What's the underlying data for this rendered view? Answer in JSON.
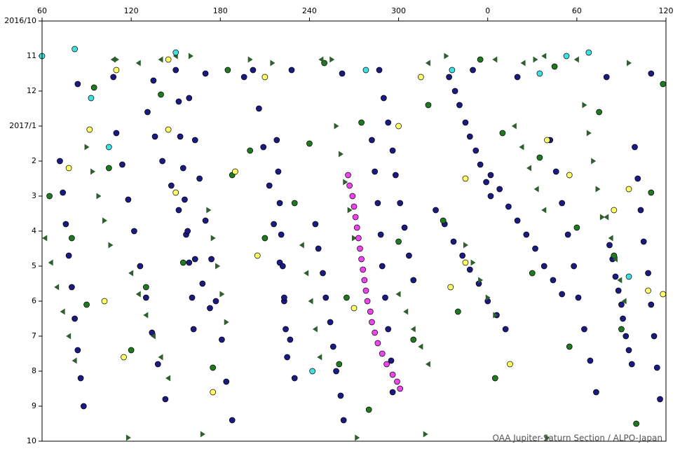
{
  "chart_data": {
    "type": "scatter",
    "annotation": "OAA Jupiter-Saturn Section / ALPO-Japan",
    "xaxis_position": "top",
    "xlim": [
      60,
      480
    ],
    "xticks": [
      60,
      120,
      180,
      240,
      300,
      {
        "value": 360,
        "label": "0"
      },
      {
        "value": 420,
        "label": "60"
      },
      {
        "value": 480,
        "label": "120"
      }
    ],
    "ylim": [
      12,
      0
    ],
    "yticks": [
      {
        "value": 0,
        "label": "2016/10"
      },
      {
        "value": 1,
        "label": "11"
      },
      {
        "value": 2,
        "label": "12"
      },
      {
        "value": 3,
        "label": "2017/1"
      },
      {
        "value": 4,
        "label": "2"
      },
      {
        "value": 5,
        "label": "3"
      },
      {
        "value": 6,
        "label": "4"
      },
      {
        "value": 7,
        "label": "5"
      },
      {
        "value": 8,
        "label": "6"
      },
      {
        "value": 9,
        "label": "7"
      },
      {
        "value": 10,
        "label": "8"
      },
      {
        "value": 11,
        "label": "9"
      },
      {
        "value": 12,
        "label": "10"
      }
    ],
    "series": [
      {
        "color": "#1a1a80",
        "marker": "circle",
        "x": [
          72,
          74,
          76,
          78,
          80,
          82,
          84,
          86,
          88,
          110,
          114,
          118,
          122,
          126,
          130,
          134,
          138,
          143,
          131,
          136,
          141,
          147,
          152,
          157,
          163,
          168,
          173,
          150,
          152,
          153,
          155,
          156,
          158,
          159,
          161,
          162,
          159,
          163,
          166,
          170,
          174,
          177,
          181,
          184,
          188,
          202,
          206,
          209,
          213,
          216,
          220,
          223,
          227,
          230,
          218,
          219,
          220,
          221,
          222,
          223,
          224,
          225,
          244,
          246,
          249,
          251,
          254,
          256,
          258,
          261,
          263,
          287,
          290,
          293,
          296,
          298,
          301,
          304,
          307,
          310,
          325,
          331,
          337,
          343,
          348,
          354,
          360,
          366,
          372,
          362,
          368,
          374,
          380,
          386,
          392,
          398,
          404,
          410,
          402,
          406,
          410,
          414,
          418,
          421,
          425,
          429,
          433,
          442,
          444,
          446,
          448,
          450,
          451,
          453,
          455,
          457,
          459,
          461,
          463,
          465,
          468,
          470,
          472,
          474,
          476,
          84,
          108,
          135,
          170,
          196,
          228,
          262,
          350,
          380,
          440,
          470,
          282,
          284,
          286,
          288,
          289,
          291,
          293,
          295,
          296,
          334,
          338,
          341,
          345,
          348,
          352,
          355,
          359,
          362
        ],
        "values": [
          4,
          4.9,
          5.8,
          6.7,
          7.6,
          8.5,
          9.4,
          10.2,
          11,
          3.2,
          4.1,
          5.1,
          6.0,
          7.0,
          7.9,
          8.9,
          9.8,
          10.8,
          2.6,
          3.3,
          4.0,
          4.7,
          5.4,
          6.1,
          6.8,
          7.5,
          8.2,
          1.4,
          2.3,
          3.3,
          4.2,
          5.1,
          6.0,
          6.9,
          7.9,
          8.8,
          2.2,
          3.4,
          4.5,
          5.7,
          6.8,
          8.0,
          9.1,
          10.3,
          11.4,
          1.4,
          2.5,
          3.6,
          4.7,
          5.8,
          6.9,
          8.0,
          9.1,
          10.2,
          3.4,
          4.3,
          5.2,
          6.1,
          7.0,
          7.9,
          8.8,
          9.6,
          5.8,
          6.5,
          7.2,
          7.9,
          8.6,
          9.3,
          10.0,
          10.7,
          11.4,
          1.4,
          2.2,
          2.9,
          3.7,
          4.4,
          5.2,
          5.9,
          6.7,
          7.4,
          5.4,
          5.8,
          6.3,
          6.7,
          7.1,
          7.5,
          8.0,
          8.4,
          8.8,
          4.4,
          4.8,
          5.3,
          5.7,
          6.1,
          6.5,
          7.0,
          7.4,
          7.8,
          3.4,
          4.3,
          5.2,
          6.1,
          7.0,
          7.9,
          8.8,
          9.7,
          10.6,
          6.4,
          6.8,
          7.3,
          7.7,
          8.1,
          8.5,
          9.0,
          9.4,
          9.8,
          3.6,
          4.5,
          5.4,
          6.3,
          7.2,
          8.1,
          9.0,
          9.9,
          10.8,
          1.8,
          1.6,
          1.7,
          1.5,
          1.6,
          1.4,
          1.5,
          1.4,
          1.6,
          1.6,
          1.5,
          3.4,
          4.3,
          5.2,
          6.1,
          7.0,
          7.9,
          8.8,
          9.7,
          10.6,
          1.6,
          2.0,
          2.4,
          2.9,
          3.3,
          3.7,
          4.1,
          4.6,
          5.0
        ]
      },
      {
        "color": "#1f7a1f",
        "marker": "circle",
        "x": [
          65,
          95,
          105,
          140,
          155,
          185,
          200,
          230,
          250,
          265,
          275,
          300,
          320,
          340,
          355,
          370,
          390,
          405,
          420,
          435,
          450,
          470,
          478,
          90,
          120,
          175,
          210,
          240,
          280,
          310,
          330,
          365,
          395,
          415,
          445,
          460,
          80,
          130,
          188,
          260
        ],
        "values": [
          5,
          1.9,
          4.2,
          2.1,
          6.9,
          1.4,
          3.7,
          5.2,
          1.2,
          7.9,
          2.9,
          6.3,
          2.4,
          8.3,
          1.1,
          3.2,
          7.2,
          1.3,
          5.9,
          2.6,
          8.8,
          4.9,
          1.8,
          8.1,
          9.4,
          9.9,
          6.2,
          3.5,
          11.1,
          9.1,
          5.7,
          10.2,
          3.9,
          9.3,
          6.7,
          11.5,
          6.2,
          7.6,
          4.4,
          9.8
        ]
      },
      {
        "color": "#2f5f2f",
        "marker": "triangle-left",
        "x": [
          62,
          66,
          70,
          74,
          78,
          82,
          120,
          125,
          130,
          135,
          140,
          145,
          235,
          238,
          241,
          244,
          247,
          300,
          305,
          310,
          315,
          320,
          378,
          383,
          388,
          393,
          398,
          440,
          443,
          446,
          449,
          452,
          108,
          125,
          140,
          150,
          248,
          320,
          365,
          384,
          398,
          420
        ],
        "values": [
          6.2,
          6.9,
          7.6,
          8.3,
          9.0,
          9.7,
          7.2,
          7.8,
          8.4,
          9.0,
          9.6,
          10.2,
          6.4,
          7.2,
          8.0,
          8.8,
          9.6,
          7.8,
          8.3,
          8.8,
          9.3,
          9.8,
          3.0,
          3.6,
          4.2,
          4.8,
          5.4,
          5.6,
          6.2,
          6.8,
          7.4,
          8.0,
          1.1,
          1.2,
          1.1,
          1.0,
          1.1,
          1.2,
          1.1,
          1.2,
          1.0,
          1.1
        ]
      },
      {
        "color": "#2f5f2f",
        "marker": "triangle-right",
        "x": [
          90,
          94,
          98,
          102,
          106,
          172,
          175,
          178,
          181,
          184,
          258,
          261,
          264,
          267,
          270,
          345,
          350,
          355,
          360,
          365,
          425,
          428,
          431,
          434,
          437,
          110,
          160,
          200,
          215,
          255,
          332,
          392,
          455,
          118,
          168,
          272,
          318,
          400
        ],
        "values": [
          3.6,
          4.3,
          5.0,
          5.7,
          6.4,
          5.4,
          6.2,
          7.0,
          7.8,
          8.6,
          3.0,
          3.8,
          4.6,
          5.4,
          6.2,
          6.4,
          6.9,
          7.4,
          7.9,
          8.4,
          2.4,
          3.2,
          4.0,
          4.8,
          5.6,
          1.1,
          1.0,
          1.1,
          1.2,
          1.1,
          1.0,
          1.1,
          1.2,
          11.9,
          11.8,
          11.9,
          11.8,
          11.9
        ]
      },
      {
        "color": "#ffff66",
        "marker": "circle",
        "x": [
          78,
          92,
          102,
          110,
          115,
          145,
          150,
          175,
          190,
          205,
          210,
          270,
          300,
          315,
          335,
          345,
          375,
          400,
          415,
          445,
          455,
          468,
          478,
          145,
          345
        ],
        "values": [
          4.2,
          3.1,
          8.0,
          1.4,
          9.6,
          3.1,
          4.9,
          10.6,
          4.3,
          6.7,
          1.6,
          8.2,
          3.0,
          1.6,
          7.6,
          6.9,
          9.8,
          3.4,
          4.4,
          5.4,
          4.8,
          7.7,
          7.8,
          1.1,
          4.5
        ]
      },
      {
        "color": "#40e0e0",
        "marker": "circle",
        "x": [
          60,
          82,
          93,
          105,
          150,
          278,
          336,
          395,
          413,
          455,
          428,
          242
        ],
        "values": [
          1,
          0.8,
          2.2,
          3.6,
          0.9,
          1.4,
          1.4,
          1.5,
          1,
          7.3,
          0.9,
          10
        ]
      },
      {
        "color": "#ee44ee",
        "marker": "circle",
        "x": [
          266,
          267,
          269,
          270,
          271,
          272,
          273,
          274,
          275,
          276,
          277,
          278,
          279,
          281,
          282,
          284,
          286,
          289,
          292,
          296,
          299,
          301
        ],
        "values": [
          4.4,
          4.7,
          5.0,
          5.3,
          5.6,
          5.9,
          6.2,
          6.5,
          6.8,
          7.1,
          7.4,
          7.7,
          8.0,
          8.3,
          8.6,
          8.9,
          9.2,
          9.5,
          9.8,
          10.1,
          10.3,
          10.5
        ]
      }
    ]
  }
}
